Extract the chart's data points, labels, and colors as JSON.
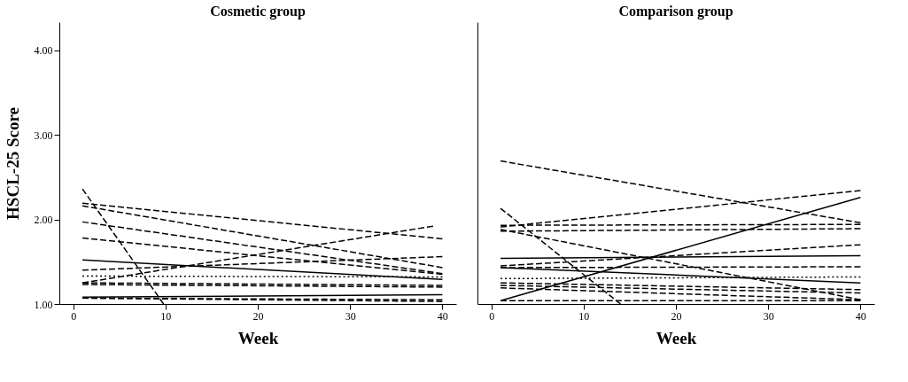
{
  "chart_data": [
    {
      "type": "line",
      "title": "Cosmetic group",
      "xlabel": "Week",
      "ylabel": "HSCL-25 Score",
      "xlim": [
        -1.5,
        41.5
      ],
      "ylim": [
        1,
        4.33
      ],
      "xticks": [
        0,
        10,
        20,
        30,
        40
      ],
      "yticks": [
        {
          "value": 1,
          "label": "1.00"
        },
        {
          "value": 2,
          "label": "2.00"
        },
        {
          "value": 3,
          "label": "3.00"
        },
        {
          "value": 4,
          "label": "4.00"
        }
      ],
      "grid": false,
      "legend": false,
      "series": [
        {
          "color": "#000000",
          "line_style": "dashed",
          "x": [
            1,
            40
          ],
          "values": [
            2.19,
            1.77
          ]
        },
        {
          "color": "#000000",
          "line_style": "dashed",
          "x": [
            1,
            40
          ],
          "values": [
            2.16,
            1.43
          ]
        },
        {
          "color": "#000000",
          "line_style": "dashed",
          "x": [
            1,
            40
          ],
          "values": [
            1.97,
            1.36
          ]
        },
        {
          "color": "#000000",
          "line_style": "dashed",
          "x": [
            1,
            40
          ],
          "values": [
            1.78,
            1.35
          ]
        },
        {
          "color": "#000000",
          "line_style": "dashed",
          "x": [
            1,
            9.8
          ],
          "values": [
            2.36,
            1.0
          ]
        },
        {
          "color": "#000000",
          "line_style": "solid",
          "x": [
            1,
            40
          ],
          "values": [
            1.52,
            1.29
          ]
        },
        {
          "color": "#000000",
          "line_style": "dashed",
          "x": [
            1,
            39
          ],
          "values": [
            1.25,
            1.92
          ]
        },
        {
          "color": "#000000",
          "line_style": "dashed",
          "x": [
            1,
            40
          ],
          "values": [
            1.4,
            1.56
          ]
        },
        {
          "color": "#000000",
          "line_style": "dotted",
          "x": [
            1,
            40
          ],
          "values": [
            1.33,
            1.32
          ]
        },
        {
          "color": "#000000",
          "line_style": "dashed",
          "x": [
            1,
            40
          ],
          "values": [
            1.25,
            1.22
          ]
        },
        {
          "color": "#000000",
          "line_style": "dashed",
          "x": [
            1,
            40
          ],
          "values": [
            1.23,
            1.2
          ]
        },
        {
          "color": "#000000",
          "line_style": "solid",
          "x": [
            1,
            40
          ],
          "values": [
            1.08,
            1.11
          ]
        },
        {
          "color": "#000000",
          "line_style": "dashed",
          "x": [
            1,
            40
          ],
          "values": [
            1.07,
            1.05
          ]
        },
        {
          "color": "#000000",
          "line_style": "dashed",
          "x": [
            1,
            40
          ],
          "values": [
            1.07,
            1.03
          ]
        }
      ]
    },
    {
      "type": "line",
      "title": "Comparison group",
      "xlabel": "Week",
      "xlim": [
        -1.5,
        41.5
      ],
      "ylim": [
        1,
        4.33
      ],
      "xticks": [
        0,
        10,
        20,
        30,
        40
      ],
      "tick_labels": "x",
      "grid": false,
      "legend": false,
      "series": [
        {
          "color": "#000000",
          "line_style": "dashed",
          "x": [
            1,
            40
          ],
          "values": [
            2.69,
            1.96
          ]
        },
        {
          "color": "#000000",
          "line_style": "dashed",
          "x": [
            1,
            40
          ],
          "values": [
            1.91,
            2.34
          ]
        },
        {
          "color": "#000000",
          "line_style": "solid",
          "x": [
            1,
            40
          ],
          "values": [
            1.04,
            2.26
          ]
        },
        {
          "color": "#000000",
          "line_style": "dashed",
          "x": [
            1,
            14
          ],
          "values": [
            2.13,
            1.0
          ]
        },
        {
          "color": "#000000",
          "line_style": "dashed",
          "x": [
            1,
            40
          ],
          "values": [
            1.93,
            1.94
          ]
        },
        {
          "color": "#000000",
          "line_style": "dashed",
          "x": [
            1,
            40
          ],
          "values": [
            1.86,
            1.89
          ]
        },
        {
          "color": "#000000",
          "line_style": "dashed",
          "x": [
            1,
            40
          ],
          "values": [
            1.88,
            1.05
          ]
        },
        {
          "color": "#000000",
          "line_style": "dashed",
          "x": [
            1,
            40
          ],
          "values": [
            1.45,
            1.7
          ]
        },
        {
          "color": "#000000",
          "line_style": "solid",
          "x": [
            1,
            40
          ],
          "values": [
            1.54,
            1.57
          ]
        },
        {
          "color": "#000000",
          "line_style": "dashed",
          "x": [
            1,
            40
          ],
          "values": [
            1.43,
            1.44
          ]
        },
        {
          "color": "#000000",
          "line_style": "solid",
          "x": [
            1,
            40
          ],
          "values": [
            1.43,
            1.25
          ]
        },
        {
          "color": "#000000",
          "line_style": "dotted",
          "x": [
            1,
            40
          ],
          "values": [
            1.3,
            1.32
          ]
        },
        {
          "color": "#000000",
          "line_style": "dashed",
          "x": [
            1,
            40
          ],
          "values": [
            1.25,
            1.17
          ]
        },
        {
          "color": "#000000",
          "line_style": "dashed",
          "x": [
            1,
            40
          ],
          "values": [
            1.22,
            1.13
          ]
        },
        {
          "color": "#000000",
          "line_style": "dashed",
          "x": [
            1,
            40
          ],
          "values": [
            1.04,
            1.04
          ]
        },
        {
          "color": "#000000",
          "line_style": "dashed",
          "x": [
            1,
            40
          ],
          "values": [
            1.19,
            1.05
          ]
        }
      ]
    }
  ]
}
